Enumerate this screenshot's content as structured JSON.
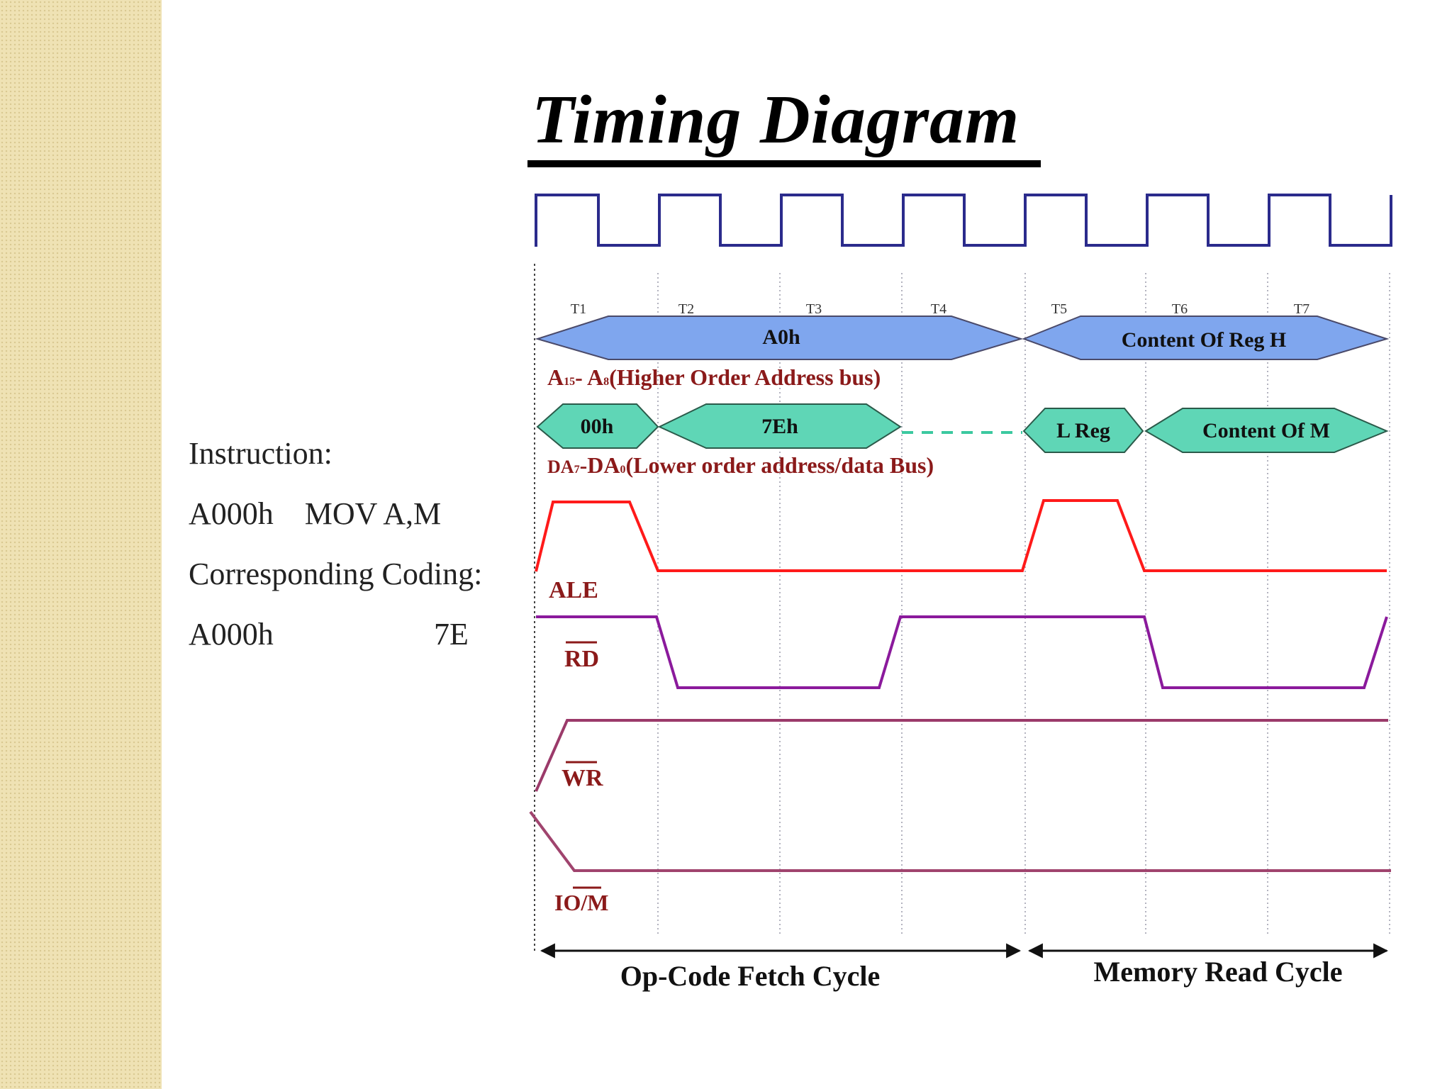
{
  "slide": {
    "title": "Timing Diagram",
    "instruction": {
      "heading": "Instruction:",
      "line1": "A000h    MOV A,M",
      "coding_heading": "Corresponding Coding:",
      "coding_address": "A000h",
      "coding_value": "7E"
    }
  },
  "diagram": {
    "t_states": [
      "T1",
      "T2",
      "T3",
      "T4",
      "T5",
      "T6",
      "T7"
    ],
    "high_bus": {
      "segments": [
        "A0h",
        "Content Of Reg H"
      ],
      "label": "(Higher Order Address bus)",
      "label_prefix_main": "A",
      "label_prefix_sub1": "15",
      "label_dash": "- A",
      "label_prefix_sub2": "8"
    },
    "low_bus": {
      "segments": [
        "00h",
        "7Eh",
        "L Reg",
        "Content Of M"
      ],
      "label": "(Lower order address/data Bus)",
      "label_prefix_main": "DA",
      "label_prefix_sub1": "7",
      "label_dash": "-DA",
      "label_prefix_sub2": "0"
    },
    "signals": {
      "ale": "ALE",
      "rd": "RD",
      "wr": "WR",
      "io_part": "IO",
      "slash": "/",
      "m_part": "M"
    },
    "cycles": [
      "Op-Code Fetch Cycle",
      "Memory Read Cycle"
    ],
    "colors": {
      "clock": "#2b2b8c",
      "high_bus_fill": "#7fa6ee",
      "low_bus_fill": "#5fd6b6",
      "ale": "#ff1a1a",
      "rd": "#8b1a9c",
      "wr": "#9b3a6a",
      "io_m": "#a0446e",
      "label": "#8b1a1a"
    }
  }
}
